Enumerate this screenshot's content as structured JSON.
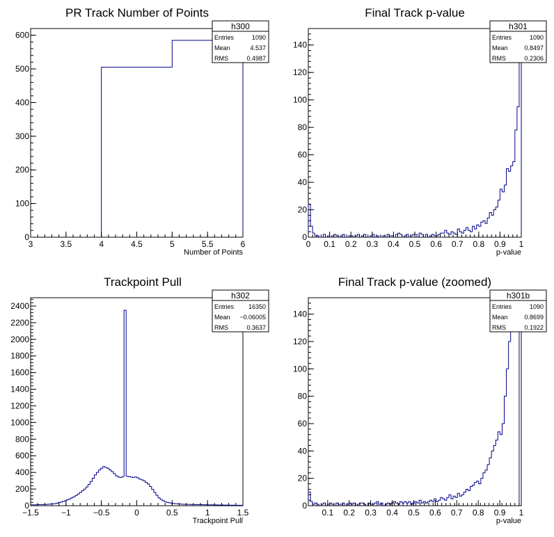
{
  "chart_data": [
    {
      "type": "histogram",
      "title": "PR Track Number of Points",
      "xlabel": "Number of Points",
      "xlim": [
        3,
        6
      ],
      "ylim": [
        0,
        620
      ],
      "xticks": [
        3,
        3.5,
        4,
        4.5,
        5,
        5.5,
        6
      ],
      "xtick_labels": [
        "3",
        "3.5",
        "4",
        "4.5",
        "5",
        "5.5",
        "6"
      ],
      "yticks": [
        0,
        100,
        200,
        300,
        400,
        500,
        600
      ],
      "ytick_labels": [
        "0",
        "100",
        "200",
        "300",
        "400",
        "500",
        "600"
      ],
      "bin_edges": [
        4,
        5,
        6
      ],
      "counts": [
        505,
        585
      ],
      "stats": {
        "name": "h300",
        "rows": [
          [
            "Entries",
            "1090"
          ],
          [
            "Mean",
            "4.537"
          ],
          [
            "RMS",
            "0.4987"
          ]
        ]
      }
    },
    {
      "type": "histogram",
      "title": "Final Track p-value",
      "xlabel": "p-value",
      "xlim": [
        0,
        1
      ],
      "ylim": [
        0,
        152
      ],
      "xticks": [
        0,
        0.1,
        0.2,
        0.3,
        0.4,
        0.5,
        0.6,
        0.7,
        0.8,
        0.9,
        1
      ],
      "xtick_labels": [
        "0",
        "0.1",
        "0.2",
        "0.3",
        "0.4",
        "0.5",
        "0.6",
        "0.7",
        "0.8",
        "0.9",
        "1"
      ],
      "yticks": [
        0,
        20,
        40,
        60,
        80,
        100,
        120,
        140
      ],
      "ytick_labels": [
        "0",
        "20",
        "40",
        "60",
        "80",
        "100",
        "120",
        "140"
      ],
      "bin_start": 0,
      "bin_width": 0.01,
      "counts": [
        24,
        8,
        3,
        1,
        1,
        0,
        0,
        2,
        0,
        1,
        0,
        1,
        2,
        1,
        0,
        1,
        2,
        0,
        0,
        1,
        1,
        0,
        1,
        2,
        0,
        1,
        2,
        0,
        0,
        1,
        2,
        0,
        1,
        0,
        0,
        1,
        0,
        2,
        1,
        1,
        0,
        2,
        3,
        2,
        0,
        1,
        2,
        0,
        1,
        2,
        2,
        0,
        3,
        2,
        0,
        2,
        0,
        1,
        2,
        1,
        1,
        2,
        3,
        3,
        5,
        3,
        2,
        4,
        3,
        2,
        6,
        4,
        3,
        5,
        7,
        5,
        4,
        8,
        6,
        9,
        8,
        11,
        12,
        10,
        14,
        18,
        16,
        20,
        22,
        27,
        35,
        33,
        38,
        50,
        48,
        52,
        55,
        78,
        95,
        130
      ],
      "stats": {
        "name": "h301",
        "rows": [
          [
            "Entries",
            "1090"
          ],
          [
            "Mean",
            "0.8497"
          ],
          [
            "RMS",
            "0.2306"
          ]
        ]
      }
    },
    {
      "type": "histogram",
      "title": "Trackpoint Pull",
      "xlabel": "Trackpoint Pull",
      "xlim": [
        -1.5,
        1.5
      ],
      "ylim": [
        0,
        2500
      ],
      "xticks": [
        -1.5,
        -1,
        -0.5,
        0,
        0.5,
        1,
        1.5
      ],
      "xtick_labels": [
        "−1.5",
        "−1",
        "−0.5",
        "0",
        "0.5",
        "1",
        "1.5"
      ],
      "yticks": [
        0,
        200,
        400,
        600,
        800,
        1000,
        1200,
        1400,
        1600,
        1800,
        2000,
        2200,
        2400
      ],
      "ytick_labels": [
        "0",
        "200",
        "400",
        "600",
        "800",
        "1000",
        "1200",
        "1400",
        "1600",
        "1800",
        "2000",
        "2200",
        "2400"
      ],
      "bin_start": -1.5,
      "bin_width": 0.03,
      "counts": [
        10,
        10,
        10,
        12,
        14,
        14,
        15,
        16,
        18,
        20,
        22,
        25,
        30,
        38,
        44,
        52,
        60,
        72,
        82,
        95,
        108,
        122,
        140,
        160,
        180,
        200,
        225,
        255,
        290,
        330,
        370,
        400,
        430,
        450,
        470,
        460,
        450,
        430,
        410,
        385,
        360,
        345,
        340,
        350,
        2350,
        355,
        350,
        345,
        340,
        345,
        335,
        320,
        310,
        300,
        280,
        260,
        230,
        195,
        160,
        125,
        95,
        75,
        60,
        48,
        40,
        34,
        30,
        26,
        24,
        22,
        20,
        18,
        17,
        16,
        16,
        15,
        14,
        14,
        13,
        12,
        12,
        11,
        11,
        10,
        10,
        10,
        9,
        9,
        8,
        8,
        8,
        7,
        7,
        6,
        6,
        6,
        5,
        5,
        5,
        5
      ],
      "stats": {
        "name": "h302",
        "rows": [
          [
            "Entries",
            "16350"
          ],
          [
            "Mean",
            "−0.06005"
          ],
          [
            "RMS",
            "0.3637"
          ]
        ]
      }
    },
    {
      "type": "histogram",
      "title": "Final Track p-value (zoomed)",
      "xlabel": "p-value",
      "xlim": [
        0.01,
        1
      ],
      "ylim": [
        0,
        152
      ],
      "xticks": [
        0.1,
        0.2,
        0.3,
        0.4,
        0.5,
        0.6,
        0.7,
        0.8,
        0.9,
        1
      ],
      "xtick_labels": [
        "0.1",
        "0.2",
        "0.3",
        "0.4",
        "0.5",
        "0.6",
        "0.7",
        "0.8",
        "0.9",
        "1"
      ],
      "yticks": [
        0,
        20,
        40,
        60,
        80,
        100,
        120,
        140
      ],
      "ytick_labels": [
        "0",
        "20",
        "40",
        "60",
        "80",
        "100",
        "120",
        "140"
      ],
      "bin_start": 0.01,
      "bin_width": 0.0099,
      "counts": [
        10,
        3,
        1,
        2,
        1,
        0,
        1,
        2,
        0,
        1,
        2,
        1,
        0,
        2,
        1,
        1,
        2,
        0,
        1,
        2,
        1,
        2,
        0,
        1,
        2,
        2,
        1,
        0,
        2,
        1,
        1,
        2,
        3,
        1,
        2,
        0,
        1,
        2,
        1,
        2,
        3,
        2,
        1,
        3,
        2,
        3,
        2,
        3,
        1,
        2,
        3,
        2,
        4,
        2,
        3,
        2,
        3,
        4,
        3,
        5,
        3,
        4,
        6,
        5,
        4,
        6,
        8,
        5,
        7,
        6,
        9,
        7,
        8,
        10,
        12,
        11,
        14,
        15,
        17,
        18,
        16,
        20,
        24,
        26,
        30,
        35,
        40,
        44,
        48,
        54,
        52,
        60,
        80,
        100,
        120,
        130,
        140,
        150,
        160
      ],
      "stats": {
        "name": "h301b",
        "rows": [
          [
            "Entries",
            "1090"
          ],
          [
            "Mean",
            "0.8699"
          ],
          [
            "RMS",
            "0.1922"
          ]
        ]
      }
    }
  ]
}
